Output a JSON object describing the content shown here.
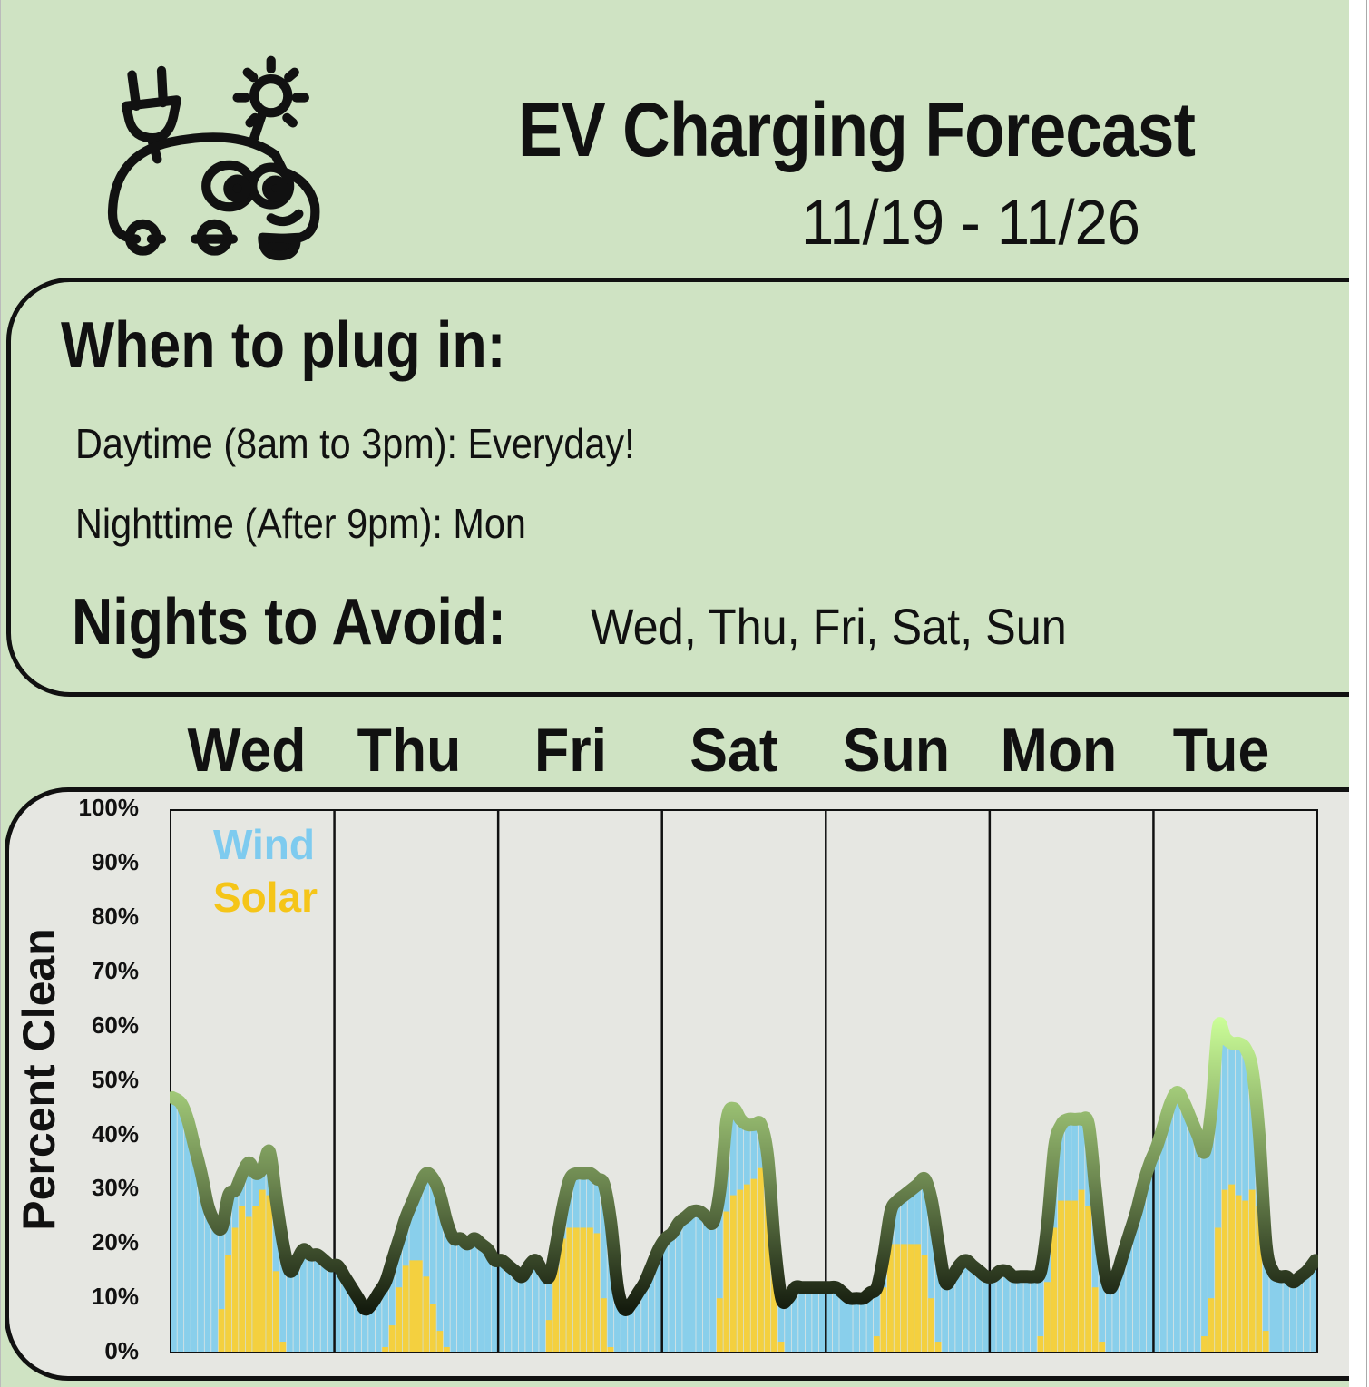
{
  "header": {
    "title": "EV Charging Forecast",
    "date_range": "11/19 - 11/26",
    "logo": "ev-car-plug-sun-icon"
  },
  "plug_in": {
    "heading": "When to plug in:",
    "daytime": "Daytime (8am to 3pm): Everyday!",
    "nighttime": "Nighttime  (After 9pm): Mon",
    "avoid_heading": "Nights to Avoid:",
    "avoid_list": "Wed, Thu, Fri, Sat, Sun"
  },
  "colors": {
    "background": "#cfe3c3",
    "plot_background": "#e6e7e2",
    "wind": "#89cfeb",
    "solar": "#f4d03f",
    "line_high": "#ccff99",
    "line_low": "#151c0e"
  },
  "chart_data": {
    "type": "bar",
    "stacked": true,
    "ylabel": "Percent Clean",
    "ylim": [
      0,
      100
    ],
    "yticks": [
      "0%",
      "10%",
      "20%",
      "30%",
      "40%",
      "50%",
      "60%",
      "70%",
      "80%",
      "90%",
      "100%"
    ],
    "categories": [
      "Wed",
      "Thu",
      "Fri",
      "Sat",
      "Sun",
      "Mon",
      "Tue"
    ],
    "x_resolution": "hourly",
    "legend": {
      "position": "top-left",
      "entries": [
        "Wind",
        "Solar"
      ]
    },
    "overlay_line": "total (wind + solar)",
    "series": [
      {
        "name": "Wind",
        "color": "#89cfeb",
        "values_by_day": [
          [
            47,
            46,
            43,
            38,
            33,
            27,
            24,
            15,
            11,
            7,
            6,
            10,
            6,
            4,
            8,
            13,
            18,
            15,
            17,
            19,
            18,
            18,
            17,
            16
          ],
          [
            16,
            14,
            12,
            10,
            8,
            9,
            11,
            12,
            12,
            9,
            9,
            11,
            14,
            19,
            23,
            25,
            23,
            21,
            21,
            20,
            21,
            20,
            19,
            17
          ],
          [
            17,
            16,
            15,
            14,
            16,
            17,
            15,
            8,
            4,
            6,
            9,
            10,
            10,
            10,
            10,
            21,
            23,
            12,
            8,
            9,
            11,
            13,
            16,
            19
          ],
          [
            21,
            22,
            24,
            25,
            26,
            26,
            25,
            24,
            20,
            17,
            16,
            13,
            11,
            10,
            8,
            6,
            0,
            8,
            10,
            12,
            12,
            12,
            12,
            12
          ],
          [
            12,
            12,
            11,
            10,
            10,
            10,
            11,
            9,
            6,
            6,
            8,
            9,
            10,
            11,
            14,
            18,
            18,
            13,
            14,
            16,
            17,
            16,
            15,
            14
          ],
          [
            14,
            15,
            15,
            14,
            14,
            14,
            14,
            12,
            11,
            15,
            14,
            15,
            15,
            13,
            15,
            18,
            16,
            12,
            14,
            18,
            22,
            26,
            31,
            35
          ],
          [
            38,
            42,
            46,
            48,
            46,
            43,
            40,
            34,
            35,
            37,
            28,
            26,
            28,
            28,
            22,
            13,
            16,
            15,
            14,
            14,
            13,
            14,
            15,
            17
          ]
        ]
      },
      {
        "name": "Solar",
        "color": "#f4d03f",
        "values_by_day": [
          [
            0,
            0,
            0,
            0,
            0,
            0,
            0,
            8,
            18,
            23,
            27,
            25,
            27,
            30,
            29,
            15,
            2,
            0,
            0,
            0,
            0,
            0,
            0,
            0
          ],
          [
            0,
            0,
            0,
            0,
            0,
            0,
            0,
            1,
            5,
            12,
            16,
            17,
            17,
            14,
            9,
            4,
            1,
            0,
            0,
            0,
            0,
            0,
            0,
            0
          ],
          [
            0,
            0,
            0,
            0,
            0,
            0,
            0,
            6,
            16,
            21,
            23,
            23,
            23,
            23,
            22,
            10,
            1,
            0,
            0,
            0,
            0,
            0,
            0,
            0
          ],
          [
            0,
            0,
            0,
            0,
            0,
            0,
            0,
            0,
            10,
            26,
            29,
            30,
            31,
            32,
            34,
            30,
            20,
            2,
            0,
            0,
            0,
            0,
            0,
            0
          ],
          [
            0,
            0,
            0,
            0,
            0,
            0,
            0,
            3,
            12,
            20,
            20,
            20,
            20,
            20,
            18,
            10,
            2,
            0,
            0,
            0,
            0,
            0,
            0,
            0
          ],
          [
            0,
            0,
            0,
            0,
            0,
            0,
            0,
            3,
            13,
            23,
            28,
            28,
            28,
            30,
            27,
            12,
            2,
            0,
            0,
            0,
            0,
            0,
            0,
            0
          ],
          [
            0,
            0,
            0,
            0,
            0,
            0,
            0,
            3,
            10,
            23,
            30,
            31,
            29,
            28,
            30,
            27,
            4,
            0,
            0,
            0,
            0,
            0,
            0,
            0
          ]
        ]
      }
    ]
  }
}
